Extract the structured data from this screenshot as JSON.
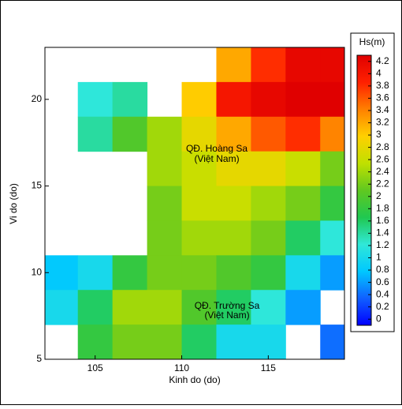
{
  "chart_data": {
    "type": "heatmap",
    "xlabel": "Kinh do (do)",
    "ylabel": "Vi do (do)",
    "colorbar_title": "Hs(m)",
    "xlim": [
      102.1,
      119.4
    ],
    "ylim": [
      5,
      23
    ],
    "xticks": [
      105,
      110,
      115
    ],
    "yticks": [
      5,
      10,
      15,
      20
    ],
    "x": [
      103,
      105,
      107,
      109,
      111,
      113,
      115,
      117,
      119
    ],
    "y": [
      22,
      20,
      18,
      16,
      14,
      12,
      10,
      8,
      6
    ],
    "z": [
      [
        null,
        null,
        null,
        null,
        null,
        3.2,
        3.8,
        4.2,
        4.2
      ],
      [
        null,
        1.2,
        1.4,
        null,
        3.0,
        4.0,
        4.2,
        4.4,
        4.3
      ],
      [
        null,
        1.4,
        2.0,
        2.4,
        2.8,
        3.2,
        3.6,
        3.8,
        3.4
      ],
      [
        null,
        null,
        null,
        2.4,
        2.6,
        2.8,
        2.8,
        2.6,
        2.2
      ],
      [
        null,
        null,
        null,
        2.2,
        2.6,
        2.6,
        2.4,
        2.2,
        1.8
      ],
      [
        null,
        null,
        null,
        2.2,
        2.4,
        2.4,
        2.2,
        1.6,
        1.2
      ],
      [
        0.8,
        1.0,
        1.8,
        2.2,
        2.2,
        2.0,
        1.8,
        1.0,
        0.6
      ],
      [
        1.0,
        1.6,
        2.4,
        2.4,
        2.0,
        1.6,
        1.2,
        0.6,
        null
      ],
      [
        null,
        1.8,
        2.2,
        2.2,
        1.6,
        1.0,
        1.0,
        null,
        0.4
      ]
    ],
    "clim": [
      -0.1,
      4.3
    ],
    "cticks": [
      0,
      0.2,
      0.4,
      0.6,
      0.8,
      1,
      1.2,
      1.4,
      1.6,
      1.8,
      2,
      2.2,
      2.4,
      2.6,
      2.8,
      3,
      3.2,
      3.4,
      3.6,
      3.8,
      4,
      4.2
    ],
    "colormap": [
      "#0000ff",
      "#1060ff",
      "#00c8ff",
      "#30e8d8",
      "#20c850",
      "#60c820",
      "#c0e000",
      "#ffd000",
      "#ff8000",
      "#ff2000",
      "#e00000"
    ],
    "annotations": [
      [
        "QĐ. Hoàng Sa",
        "(Việt Nam)"
      ],
      [
        "QĐ. Trường Sa",
        "(Việt Nam)"
      ]
    ]
  }
}
